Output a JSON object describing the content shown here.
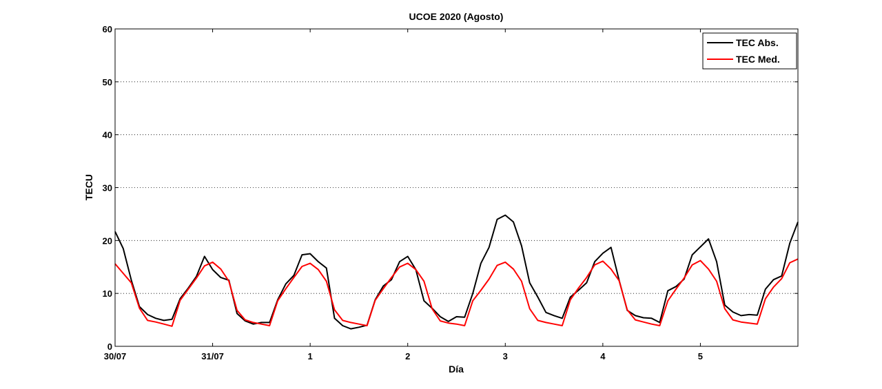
{
  "chart_data": {
    "type": "line",
    "title": "UCOE 2020 (Agosto)",
    "xlabel": "Día",
    "ylabel": "TECU",
    "ylim": [
      0,
      60
    ],
    "xlim": [
      0,
      7
    ],
    "yticks": [
      0,
      10,
      20,
      30,
      40,
      50,
      60
    ],
    "xticks": [
      {
        "x": 0,
        "label": "30/07"
      },
      {
        "x": 1,
        "label": "31/07"
      },
      {
        "x": 2,
        "label": "1"
      },
      {
        "x": 3,
        "label": "2"
      },
      {
        "x": 4,
        "label": "3"
      },
      {
        "x": 5,
        "label": "4"
      },
      {
        "x": 6,
        "label": "5"
      }
    ],
    "grid": "horizontal dotted",
    "legend_position": "top-right",
    "series": [
      {
        "name": "TEC Abs.",
        "color": "#000000",
        "x": [
          0,
          0.0833,
          0.1667,
          0.25,
          0.3333,
          0.4167,
          0.5,
          0.5833,
          0.6667,
          0.75,
          0.8333,
          0.9167,
          1.0,
          1.0833,
          1.1667,
          1.25,
          1.3333,
          1.4167,
          1.5,
          1.5833,
          1.6667,
          1.75,
          1.8333,
          1.9167,
          2.0,
          2.0833,
          2.1667,
          2.25,
          2.3333,
          2.4167,
          2.5,
          2.5833,
          2.6667,
          2.75,
          2.8333,
          2.9167,
          3.0,
          3.0833,
          3.1667,
          3.25,
          3.3333,
          3.4167,
          3.5,
          3.5833,
          3.6667,
          3.75,
          3.8333,
          3.9167,
          4.0,
          4.0833,
          4.1667,
          4.25,
          4.3333,
          4.4167,
          4.5,
          4.5833,
          4.6667,
          4.75,
          4.8333,
          4.9167,
          5.0,
          5.0833,
          5.1667,
          5.25,
          5.3333,
          5.4167,
          5.5,
          5.5833,
          5.6667,
          5.75,
          5.8333,
          5.9167,
          6.0,
          6.0833,
          6.1667,
          6.25,
          6.3333,
          6.4167,
          6.5,
          6.5833,
          6.6667,
          6.75,
          6.8333,
          6.9167,
          7.0
        ],
        "values": [
          21.7,
          18.5,
          12.5,
          7.5,
          6.0,
          5.3,
          4.9,
          5.1,
          9.0,
          11.0,
          13.2,
          17.0,
          14.5,
          13.0,
          12.5,
          6.2,
          4.8,
          4.2,
          4.5,
          4.5,
          8.8,
          11.8,
          13.4,
          17.3,
          17.5,
          16.0,
          14.8,
          5.3,
          3.9,
          3.3,
          3.6,
          4.0,
          8.8,
          11.4,
          12.6,
          16.0,
          17.0,
          14.5,
          8.6,
          7.2,
          5.6,
          4.7,
          5.6,
          5.5,
          10.0,
          15.7,
          18.7,
          24.0,
          24.8,
          23.5,
          19.0,
          12.0,
          9.3,
          6.4,
          5.8,
          5.3,
          9.3,
          10.6,
          12.0,
          16.0,
          17.6,
          18.7,
          12.5,
          6.8,
          5.8,
          5.4,
          5.3,
          4.5,
          10.5,
          11.3,
          12.7,
          17.3,
          18.8,
          20.3,
          16.0,
          7.8,
          6.5,
          5.8,
          6.0,
          5.9,
          10.8,
          12.6,
          13.3,
          19.5,
          23.5
        ]
      },
      {
        "name": "TEC Med.",
        "color": "#ff0000",
        "x": [
          0,
          0.0833,
          0.1667,
          0.25,
          0.3333,
          0.4167,
          0.5,
          0.5833,
          0.6667,
          0.75,
          0.8333,
          0.9167,
          1.0,
          1.0833,
          1.1667,
          1.25,
          1.3333,
          1.4167,
          1.5,
          1.5833,
          1.6667,
          1.75,
          1.8333,
          1.9167,
          2.0,
          2.0833,
          2.1667,
          2.25,
          2.3333,
          2.4167,
          2.5,
          2.5833,
          2.6667,
          2.75,
          2.8333,
          2.9167,
          3.0,
          3.0833,
          3.1667,
          3.25,
          3.3333,
          3.4167,
          3.5,
          3.5833,
          3.6667,
          3.75,
          3.8333,
          3.9167,
          4.0,
          4.0833,
          4.1667,
          4.25,
          4.3333,
          4.4167,
          4.5,
          4.5833,
          4.6667,
          4.75,
          4.8333,
          4.9167,
          5.0,
          5.0833,
          5.1667,
          5.25,
          5.3333,
          5.4167,
          5.5,
          5.5833,
          5.6667,
          5.75,
          5.8333,
          5.9167,
          6.0,
          6.0833,
          6.1667,
          6.25,
          6.3333,
          6.4167,
          6.5,
          6.5833,
          6.6667,
          6.75,
          6.8333,
          6.9167,
          7.0
        ],
        "values": [
          15.6,
          13.8,
          12.0,
          7.2,
          4.9,
          4.6,
          4.2,
          3.8,
          8.7,
          10.8,
          12.9,
          15.2,
          15.9,
          14.6,
          12.3,
          6.8,
          5.0,
          4.5,
          4.2,
          3.9,
          8.6,
          10.9,
          13.0,
          15.1,
          15.7,
          14.5,
          12.3,
          6.9,
          4.9,
          4.5,
          4.2,
          3.9,
          8.7,
          10.9,
          13.0,
          15.0,
          15.7,
          14.5,
          12.3,
          7.1,
          4.8,
          4.4,
          4.2,
          3.9,
          8.6,
          10.6,
          12.7,
          15.3,
          15.9,
          14.6,
          12.3,
          7.1,
          4.9,
          4.5,
          4.2,
          3.9,
          8.8,
          11.0,
          13.0,
          15.4,
          16.1,
          14.6,
          12.4,
          6.9,
          5.0,
          4.6,
          4.2,
          3.9,
          8.6,
          10.8,
          12.9,
          15.4,
          16.2,
          14.6,
          12.3,
          7.1,
          5.0,
          4.6,
          4.4,
          4.2,
          9.0,
          11.2,
          12.8,
          15.8,
          16.5
        ]
      }
    ]
  }
}
